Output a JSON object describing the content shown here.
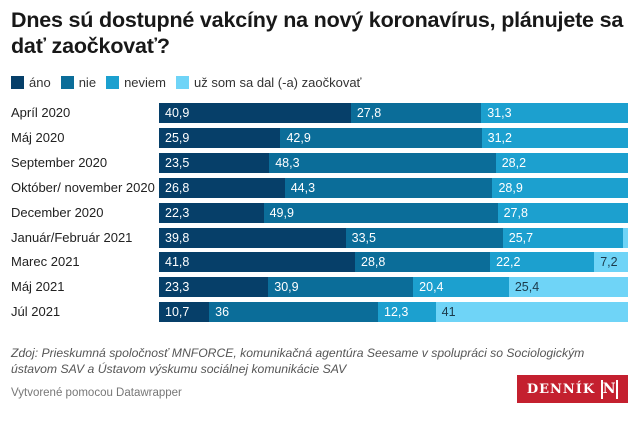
{
  "title": "Dnes sú dostupné vakcíny na nový koronavírus, plánujete sa dať zaočkovať?",
  "colors": {
    "ano": "#063f69",
    "nie": "#0b6d99",
    "neviem": "#1ca0cf",
    "uz_som": "#6fd4f7"
  },
  "source": "Zdoj: Prieskumná spoločnosť MNFORCE, komunikačná agentúra Seesame v spolupráci so Sociologickým ústavom SAV a Ústavom výskumu sociálnej komunikácie SAV",
  "credit": "Vytvorené pomocou Datawrapper",
  "logo": {
    "text": "DENNÍK",
    "mark": "N"
  },
  "chart_data": {
    "type": "bar",
    "orientation": "horizontal",
    "stacked": true,
    "title": "Dnes sú dostupné vakcíny na nový koronavírus, plánujete sa dať zaočkovať?",
    "xlabel": "",
    "ylabel": "",
    "xlim": [
      0,
      100
    ],
    "grid": false,
    "legend_position": "top-left",
    "categories": [
      "Apríl 2020",
      "Máj 2020",
      "September 2020",
      "Október/ november 2020",
      "December 2020",
      "Január/Február 2021",
      "Marec 2021",
      "Máj 2021",
      "Júl 2021"
    ],
    "series": [
      {
        "name": "áno",
        "key": "ano",
        "values": [
          40.9,
          25.9,
          23.5,
          26.8,
          22.3,
          39.8,
          41.8,
          23.3,
          10.7
        ],
        "labels": [
          "40,9",
          "25,9",
          "23,5",
          "26,8",
          "22,3",
          "39,8",
          "41,8",
          "23,3",
          "10,7"
        ]
      },
      {
        "name": "nie",
        "key": "nie",
        "values": [
          27.8,
          42.9,
          48.3,
          44.3,
          49.9,
          33.5,
          28.8,
          30.9,
          36
        ],
        "labels": [
          "27,8",
          "42,9",
          "48,3",
          "44,3",
          "49,9",
          "33,5",
          "28,8",
          "30,9",
          "36"
        ]
      },
      {
        "name": "neviem",
        "key": "neviem",
        "values": [
          31.3,
          31.2,
          28.2,
          28.9,
          27.8,
          25.7,
          22.2,
          20.4,
          12.3
        ],
        "labels": [
          "31,3",
          "31,2",
          "28,2",
          "28,9",
          "27,8",
          "25,7",
          "22,2",
          "20,4",
          "12,3"
        ]
      },
      {
        "name": "už som sa dal (-a) zaočkovať",
        "key": "uz_som",
        "values": [
          0,
          0,
          0,
          0,
          0,
          1.0,
          7.2,
          25.4,
          41
        ],
        "labels": [
          "",
          "",
          "",
          "",
          "",
          "",
          "7,2",
          "25,4",
          "41"
        ]
      }
    ]
  }
}
